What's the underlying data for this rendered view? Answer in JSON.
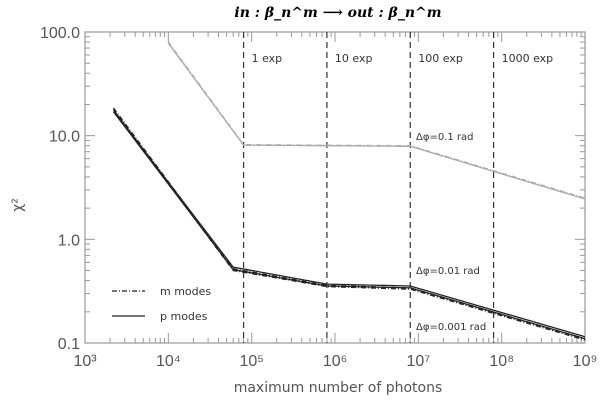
{
  "chart_data": {
    "type": "line",
    "title": "in : β_n^m ⟶ out : β_n^m",
    "xlabel": "maximum number of photons",
    "ylabel": "χ²",
    "xscale": "log",
    "yscale": "log",
    "xlim": [
      1000,
      1000000000
    ],
    "ylim": [
      0.1,
      100
    ],
    "x_tick_labels": [
      "10³",
      "10⁴",
      "10⁵",
      "10⁶",
      "10⁷",
      "10⁸",
      "10⁹"
    ],
    "y_tick_labels": [
      "0.1",
      "1.0",
      "10.0",
      "100.0"
    ],
    "vlines": [
      {
        "x": 80000,
        "label": "1 exp"
      },
      {
        "x": 800000,
        "label": "10 exp"
      },
      {
        "x": 8000000,
        "label": "100 exp"
      },
      {
        "x": 80000000,
        "label": "1000 exp"
      }
    ],
    "curve_labels": [
      "Δφ=0.1 rad",
      "Δφ=0.01 rad",
      "Δφ=0.001 rad"
    ],
    "legend": {
      "position": "bottom-left",
      "entries": [
        "m modes",
        "p modes"
      ]
    },
    "series": [
      {
        "group": "Δφ=0.1 rad",
        "mode": "m modes",
        "color": "#aaaaaa",
        "x": [
          10000,
          80000,
          800000,
          8000000,
          1000000000
        ],
        "y": [
          80,
          8.2,
          8.1,
          8.0,
          2.5
        ]
      },
      {
        "group": "Δφ=0.1 rad",
        "mode": "p modes",
        "color": "#aaaaaa",
        "x": [
          10000,
          80000,
          800000,
          8000000,
          1000000000
        ],
        "y": [
          78,
          8.1,
          8.0,
          7.9,
          2.45
        ]
      },
      {
        "group": "Δφ=0.01 rad",
        "mode": "m modes",
        "color": "#222222",
        "x": [
          2200,
          60000,
          800000,
          8000000,
          1000000000
        ],
        "y": [
          18.5,
          0.52,
          0.36,
          0.34,
          0.11
        ]
      },
      {
        "group": "Δφ=0.01 rad",
        "mode": "p modes",
        "color": "#222222",
        "x": [
          2200,
          60000,
          800000,
          8000000,
          1000000000
        ],
        "y": [
          17.5,
          0.54,
          0.37,
          0.355,
          0.115
        ]
      },
      {
        "group": "Δφ=0.001 rad",
        "mode": "m modes",
        "color": "#222222",
        "x": [
          2200,
          60000,
          800000,
          8000000,
          1000000000
        ],
        "y": [
          18.0,
          0.5,
          0.35,
          0.33,
          0.107
        ]
      },
      {
        "group": "Δφ=0.001 rad",
        "mode": "p modes",
        "color": "#222222",
        "x": [
          2200,
          60000,
          800000,
          8000000,
          1000000000
        ],
        "y": [
          17.0,
          0.51,
          0.355,
          0.34,
          0.11
        ]
      }
    ],
    "grid": false
  }
}
